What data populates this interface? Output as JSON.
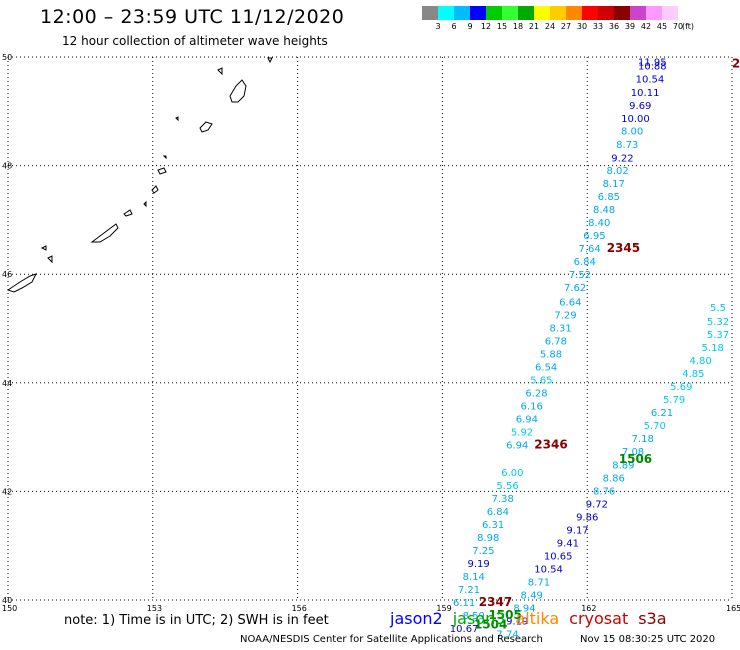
{
  "header": {
    "title": "12:00 – 23:59 UTC 11/12/2020",
    "subtitle": "12 hour collection of altimeter wave heights"
  },
  "legend": {
    "unit": "(ft)",
    "colors": [
      "#888888",
      "#00ffff",
      "#00bbff",
      "#0000ff",
      "#00cc00",
      "#33ff33",
      "#00aa00",
      "#ffff00",
      "#ffcc00",
      "#ff8800",
      "#ff0000",
      "#cc0000",
      "#880000",
      "#cc44cc",
      "#ff99ff",
      "#ffccff"
    ],
    "labels": [
      "3",
      "6",
      "9",
      "12",
      "15",
      "18",
      "21",
      "24",
      "27",
      "30",
      "33",
      "36",
      "39",
      "42",
      "45",
      "70"
    ]
  },
  "map": {
    "lon_ticks": [
      "150",
      "153",
      "156",
      "159",
      "162",
      "165"
    ],
    "lon_values": [
      150,
      153,
      156,
      159,
      162,
      165
    ],
    "lat_ticks": [
      "40",
      "42",
      "44",
      "46",
      "48",
      "50"
    ],
    "lat_values": [
      40,
      42,
      44,
      46,
      48,
      50
    ],
    "bounds": {
      "lon_min": 150,
      "lon_max": 165,
      "lat_min": 40,
      "lat_max": 50
    }
  },
  "tracks": [
    {
      "name": "track-a",
      "points": [
        {
          "lon": 163.35,
          "lat": 49.92,
          "v": "11.95",
          "c": "#0000cc"
        },
        {
          "lon": 163.35,
          "lat": 49.84,
          "v": "10.88",
          "c": "#0000cc"
        },
        {
          "lon": 163.3,
          "lat": 49.6,
          "v": "10.54",
          "c": "#0000cc"
        },
        {
          "lon": 163.2,
          "lat": 49.36,
          "v": "10.11",
          "c": "#0000cc"
        },
        {
          "lon": 163.1,
          "lat": 49.12,
          "v": "9.69",
          "c": "#0000cc"
        },
        {
          "lon": 163.0,
          "lat": 48.88,
          "v": "10.00",
          "c": "#0000cc"
        },
        {
          "lon": 162.93,
          "lat": 48.65,
          "v": "8.00",
          "c": "#00aaee"
        },
        {
          "lon": 162.83,
          "lat": 48.4,
          "v": "8.73",
          "c": "#00aaee"
        },
        {
          "lon": 162.73,
          "lat": 48.15,
          "v": "9.22",
          "c": "#0000cc"
        },
        {
          "lon": 162.63,
          "lat": 47.92,
          "v": "8.02",
          "c": "#00aaee"
        },
        {
          "lon": 162.55,
          "lat": 47.68,
          "v": "8.17",
          "c": "#00aaee"
        },
        {
          "lon": 162.45,
          "lat": 47.44,
          "v": "6.85",
          "c": "#00aaee"
        },
        {
          "lon": 162.35,
          "lat": 47.2,
          "v": "8.48",
          "c": "#00aaee"
        },
        {
          "lon": 162.25,
          "lat": 46.96,
          "v": "8.40",
          "c": "#00aaee"
        },
        {
          "lon": 162.15,
          "lat": 46.72,
          "v": "6.95",
          "c": "#00aaee"
        },
        {
          "lon": 162.05,
          "lat": 46.48,
          "v": "7.64",
          "c": "#00aaee"
        },
        {
          "lon": 161.95,
          "lat": 46.24,
          "v": "6.84",
          "c": "#00aaee"
        },
        {
          "lon": 161.85,
          "lat": 46.0,
          "v": "7.52",
          "c": "#00aaee"
        },
        {
          "lon": 161.75,
          "lat": 45.76,
          "v": "7.62",
          "c": "#00aaee"
        },
        {
          "lon": 161.65,
          "lat": 45.5,
          "v": "6.64",
          "c": "#00aaee"
        },
        {
          "lon": 161.55,
          "lat": 45.26,
          "v": "7.29",
          "c": "#00aaee"
        },
        {
          "lon": 161.45,
          "lat": 45.02,
          "v": "8.31",
          "c": "#00aaee"
        },
        {
          "lon": 161.35,
          "lat": 44.78,
          "v": "6.78",
          "c": "#00aaee"
        },
        {
          "lon": 161.25,
          "lat": 44.54,
          "v": "5.88",
          "c": "#00aaee"
        },
        {
          "lon": 161.15,
          "lat": 44.3,
          "v": "6.54",
          "c": "#00aaee"
        },
        {
          "lon": 161.05,
          "lat": 44.06,
          "v": "5.65",
          "c": "#00ccee"
        },
        {
          "lon": 160.95,
          "lat": 43.82,
          "v": "6.28",
          "c": "#00aaee"
        },
        {
          "lon": 160.85,
          "lat": 43.58,
          "v": "6.16",
          "c": "#00aaee"
        },
        {
          "lon": 160.75,
          "lat": 43.34,
          "v": "6.94",
          "c": "#00aaee"
        },
        {
          "lon": 160.65,
          "lat": 43.1,
          "v": "5.92",
          "c": "#00ccee"
        },
        {
          "lon": 160.55,
          "lat": 42.86,
          "v": "6.94",
          "c": "#00aaee"
        },
        {
          "lon": 160.45,
          "lat": 42.36,
          "v": "6.00",
          "c": "#00ccee"
        },
        {
          "lon": 160.35,
          "lat": 42.12,
          "v": "5.56",
          "c": "#00ccee"
        },
        {
          "lon": 160.25,
          "lat": 41.88,
          "v": "7.38",
          "c": "#00aaee"
        },
        {
          "lon": 160.15,
          "lat": 41.64,
          "v": "6.84",
          "c": "#00aaee"
        },
        {
          "lon": 160.05,
          "lat": 41.4,
          "v": "6.31",
          "c": "#00aaee"
        },
        {
          "lon": 159.95,
          "lat": 41.16,
          "v": "8.98",
          "c": "#00aaee"
        },
        {
          "lon": 159.85,
          "lat": 40.92,
          "v": "7.25",
          "c": "#00aaee"
        },
        {
          "lon": 159.75,
          "lat": 40.68,
          "v": "9.19",
          "c": "#0000cc"
        },
        {
          "lon": 159.65,
          "lat": 40.44,
          "v": "8.14",
          "c": "#00aaee"
        },
        {
          "lon": 159.55,
          "lat": 40.2,
          "v": "7.21",
          "c": "#00aaee"
        },
        {
          "lon": 159.45,
          "lat": 39.96,
          "v": "6.11",
          "c": "#00aaee"
        },
        {
          "lon": 159.65,
          "lat": 39.72,
          "v": "8.59",
          "c": "#00aaee"
        },
        {
          "lon": 159.45,
          "lat": 39.48,
          "v": "10.67",
          "c": "#0000cc"
        }
      ]
    },
    {
      "name": "track-b",
      "points": [
        {
          "lon": 165.1,
          "lat": 45.4,
          "v": "5.5",
          "c": "#00ccee"
        },
        {
          "lon": 164.95,
          "lat": 45.14,
          "v": "5.32",
          "c": "#00ccee"
        },
        {
          "lon": 164.75,
          "lat": 44.9,
          "v": "5.37",
          "c": "#00ccee"
        },
        {
          "lon": 164.6,
          "lat": 44.66,
          "v": "5.18",
          "c": "#00ccee"
        },
        {
          "lon": 164.35,
          "lat": 44.42,
          "v": "4.80",
          "c": "#00ccee"
        },
        {
          "lon": 164.2,
          "lat": 44.18,
          "v": "4.85",
          "c": "#00ccee"
        },
        {
          "lon": 163.95,
          "lat": 43.94,
          "v": "5.69",
          "c": "#00ccee"
        },
        {
          "lon": 163.8,
          "lat": 43.7,
          "v": "5.79",
          "c": "#00ccee"
        },
        {
          "lon": 163.55,
          "lat": 43.46,
          "v": "6.21",
          "c": "#00aaee"
        },
        {
          "lon": 163.4,
          "lat": 43.22,
          "v": "5.70",
          "c": "#00ccee"
        },
        {
          "lon": 163.15,
          "lat": 42.98,
          "v": "7.18",
          "c": "#00aaee"
        },
        {
          "lon": 162.95,
          "lat": 42.74,
          "v": "7.08",
          "c": "#00aaee"
        },
        {
          "lon": 162.75,
          "lat": 42.5,
          "v": "8.89",
          "c": "#00aaee"
        },
        {
          "lon": 162.55,
          "lat": 42.26,
          "v": "8.86",
          "c": "#00aaee"
        },
        {
          "lon": 162.35,
          "lat": 42.02,
          "v": "8.76",
          "c": "#00aaee"
        },
        {
          "lon": 162.2,
          "lat": 41.78,
          "v": "9.72",
          "c": "#0000cc"
        },
        {
          "lon": 162.0,
          "lat": 41.54,
          "v": "9.86",
          "c": "#0000cc"
        },
        {
          "lon": 161.8,
          "lat": 41.3,
          "v": "9.17",
          "c": "#0000cc"
        },
        {
          "lon": 161.6,
          "lat": 41.06,
          "v": "9.41",
          "c": "#0000cc"
        },
        {
          "lon": 161.4,
          "lat": 40.82,
          "v": "10.65",
          "c": "#0000cc"
        },
        {
          "lon": 161.2,
          "lat": 40.58,
          "v": "10.54",
          "c": "#0000cc"
        },
        {
          "lon": 161.0,
          "lat": 40.34,
          "v": "8.71",
          "c": "#00aaee"
        },
        {
          "lon": 160.85,
          "lat": 40.1,
          "v": "8.49",
          "c": "#00aaee"
        },
        {
          "lon": 160.7,
          "lat": 39.86,
          "v": "8.94",
          "c": "#00aaee"
        },
        {
          "lon": 160.55,
          "lat": 39.62,
          "v": "9.19",
          "c": "#0000cc"
        },
        {
          "lon": 160.35,
          "lat": 39.38,
          "v": "7.74",
          "c": "#00aaee"
        }
      ]
    }
  ],
  "time_labels": [
    {
      "lon": 165.25,
      "lat": 49.88,
      "v": "2",
      "c": "#880000"
    },
    {
      "lon": 162.75,
      "lat": 46.48,
      "v": "2345",
      "c": "#880000"
    },
    {
      "lon": 161.25,
      "lat": 42.86,
      "v": "2346",
      "c": "#880000"
    },
    {
      "lon": 163.0,
      "lat": 42.6,
      "v": "1506",
      "c": "#008800"
    },
    {
      "lon": 160.1,
      "lat": 39.96,
      "v": "2347",
      "c": "#880000"
    },
    {
      "lon": 160.3,
      "lat": 39.72,
      "v": "1505",
      "c": "#008800"
    },
    {
      "lon": 160.0,
      "lat": 39.55,
      "v": "1504",
      "c": "#008800"
    }
  ],
  "note": "note: 1) Time is in UTC; 2) SWH is in feet",
  "satellites": [
    {
      "name": "jason2",
      "color": "#0000ff"
    },
    {
      "name": "jason3",
      "color": "#00aa00"
    },
    {
      "name": "altika",
      "color": "#ff8800"
    },
    {
      "name": "cryosat",
      "color": "#cc0000"
    },
    {
      "name": "s3a",
      "color": "#880000"
    }
  ],
  "footer": {
    "credit": "NOAA/NESDIS Center for Satellite Applications and Research",
    "timestamp": "Nov 15 08:30:25 UTC 2020"
  }
}
